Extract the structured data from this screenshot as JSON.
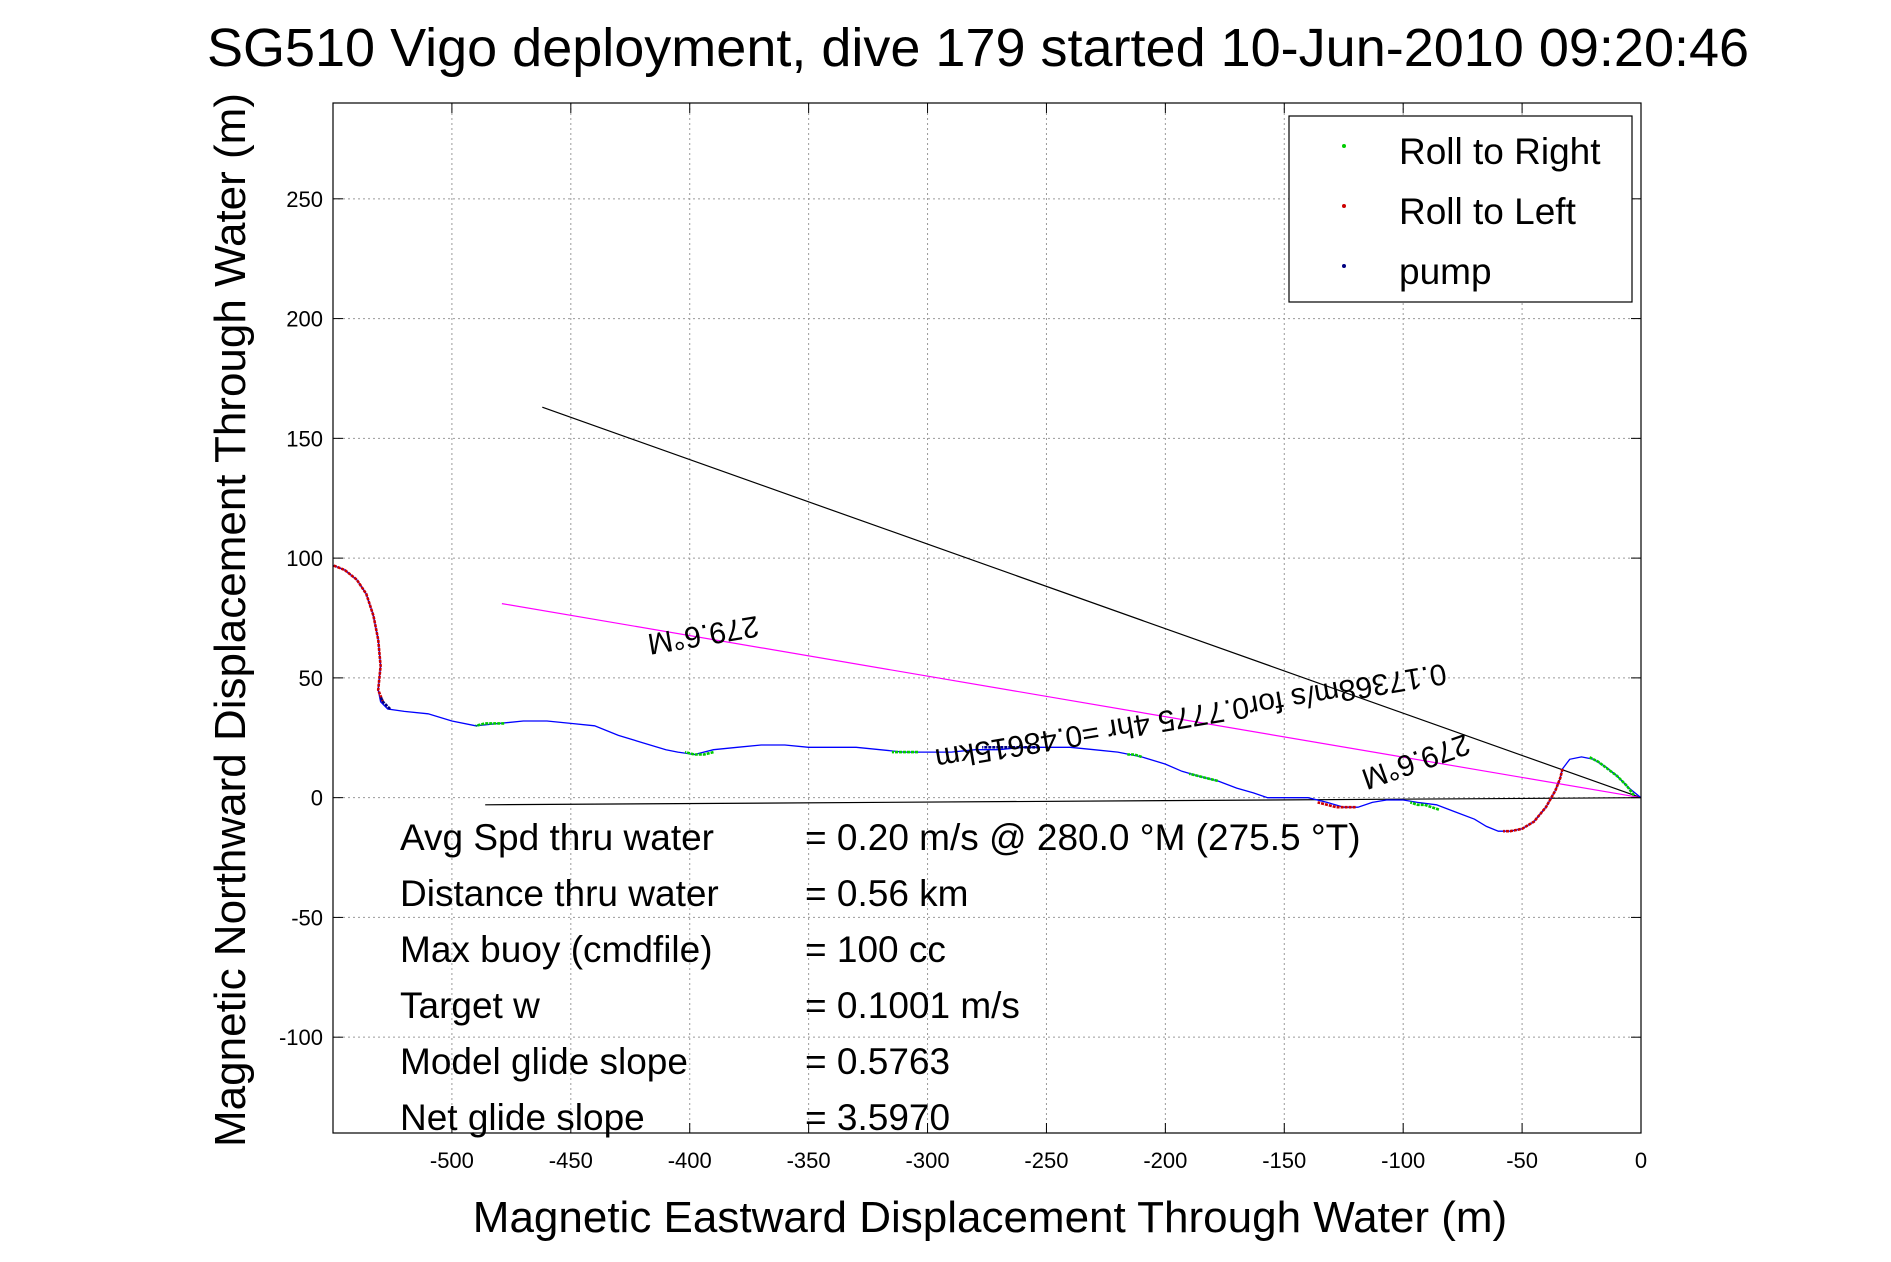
{
  "chart_data": {
    "type": "line",
    "title": "SG510 Vigo deployment, dive 179 started 10-Jun-2010 09:20:46",
    "xlabel": "Magnetic Eastward Displacement Through Water (m)",
    "ylabel": "Magnetic Northward Displacement Through Water (m)",
    "xlim": [
      -550,
      0
    ],
    "ylim": [
      -140,
      290
    ],
    "grid": true,
    "xticks": [
      -500,
      -450,
      -400,
      -350,
      -300,
      -250,
      -200,
      -150,
      -100,
      -50,
      0
    ],
    "yticks": [
      -100,
      -50,
      0,
      50,
      100,
      150,
      200,
      250
    ],
    "legend": {
      "placement": "top-right",
      "items": [
        {
          "label": "Roll to Right",
          "color": "#00cc00"
        },
        {
          "label": "Roll to Left",
          "color": "#cc0000"
        },
        {
          "label": "pump",
          "color": "#000080"
        }
      ]
    },
    "series": [
      {
        "role": "track",
        "color": "#0000ff",
        "x": [
          0,
          -5,
          -10,
          -15,
          -20,
          -25,
          -30,
          -33,
          -34,
          -36,
          -40,
          -45,
          -50,
          -55,
          -60,
          -65,
          -70,
          -78,
          -86,
          -94,
          -100,
          -107,
          -113,
          -119,
          -125,
          -132,
          -140,
          -150,
          -157,
          -163,
          -170,
          -178,
          -186,
          -193,
          -200,
          -210,
          -220,
          -230,
          -240,
          -250,
          -260,
          -270,
          -280,
          -290,
          -300,
          -310,
          -320,
          -330,
          -340,
          -350,
          -360,
          -370,
          -380,
          -390,
          -398,
          -405,
          -410,
          -420,
          -430,
          -440,
          -450,
          -460,
          -470,
          -480,
          -490,
          -500,
          -510,
          -520,
          -527,
          -530,
          -531,
          -530,
          -531,
          -533,
          -536,
          -540,
          -545,
          -550
        ],
        "y": [
          0,
          4,
          9,
          13,
          16,
          17,
          16,
          12,
          8,
          3,
          -4,
          -10,
          -13,
          -14,
          -14,
          -12,
          -9,
          -6,
          -3,
          -2,
          -1,
          -1,
          -2,
          -4,
          -4,
          -2,
          0,
          0,
          0,
          2,
          4,
          7,
          9,
          11,
          14,
          17,
          19,
          20,
          21,
          21,
          21,
          20,
          20,
          19,
          19,
          19,
          20,
          21,
          21,
          21,
          22,
          22,
          21,
          20,
          18,
          19,
          20,
          23,
          26,
          30,
          31,
          32,
          32,
          31,
          30,
          32,
          35,
          36,
          37,
          40,
          45,
          55,
          66,
          76,
          85,
          91,
          95,
          97
        ]
      }
    ],
    "segments": [
      {
        "label": "Roll to Right",
        "color": "#00cc00",
        "x": [
          -3,
          -6,
          -10,
          -14,
          -18,
          -22
        ],
        "y": [
          1,
          5,
          9,
          12,
          15,
          17
        ]
      },
      {
        "label": "Roll to Right",
        "color": "#00cc00",
        "x": [
          -85,
          -88,
          -91,
          -94,
          -97
        ],
        "y": [
          -5,
          -4,
          -3,
          -3,
          -2
        ]
      },
      {
        "label": "Roll to Right",
        "color": "#00cc00",
        "x": [
          -178,
          -182,
          -186,
          -190
        ],
        "y": [
          7,
          8,
          9,
          10
        ]
      },
      {
        "label": "Roll to Right",
        "color": "#00cc00",
        "x": [
          -210,
          -213,
          -216
        ],
        "y": [
          17,
          18,
          18
        ]
      },
      {
        "label": "Roll to Right",
        "color": "#00cc00",
        "x": [
          -304,
          -308,
          -312,
          -315
        ],
        "y": [
          19,
          19,
          19,
          19
        ]
      },
      {
        "label": "Roll to Right",
        "color": "#00cc00",
        "x": [
          -390,
          -394,
          -398,
          -402
        ],
        "y": [
          19,
          18,
          18,
          19
        ]
      },
      {
        "label": "Roll to Right",
        "color": "#00cc00",
        "x": [
          -478,
          -482,
          -486,
          -490
        ],
        "y": [
          31,
          31,
          31,
          30
        ]
      },
      {
        "label": "Roll to Left",
        "color": "#cc0000",
        "x": [
          -33,
          -34,
          -36,
          -40,
          -45,
          -50,
          -55,
          -58
        ],
        "y": [
          12,
          8,
          3,
          -4,
          -10,
          -13,
          -14,
          -14
        ]
      },
      {
        "label": "Roll to Left",
        "color": "#cc0000",
        "x": [
          -120,
          -124,
          -128,
          -132,
          -136
        ],
        "y": [
          -4,
          -4,
          -4,
          -3,
          -2
        ]
      },
      {
        "label": "Roll to Left",
        "color": "#cc0000",
        "x": [
          -529,
          -531,
          -530,
          -531,
          -533,
          -536,
          -540,
          -545,
          -550
        ],
        "y": [
          40,
          45,
          55,
          66,
          76,
          85,
          91,
          95,
          97
        ]
      },
      {
        "label": "pump",
        "color": "#000080",
        "x": [
          -253,
          -257,
          -261,
          -265,
          -269,
          -273,
          -277
        ],
        "y": [
          21,
          21,
          21,
          21,
          21,
          21,
          21
        ]
      },
      {
        "label": "pump",
        "color": "#000080",
        "x": [
          -526,
          -527,
          -528,
          -529,
          -530
        ],
        "y": [
          37,
          38,
          39,
          40,
          42
        ]
      }
    ],
    "lines": [
      {
        "color": "#000000",
        "x": [
          0,
          -462
        ],
        "y": [
          0,
          163
        ]
      },
      {
        "color": "#ff00ff",
        "x": [
          0,
          -479
        ],
        "y": [
          0,
          81
        ]
      },
      {
        "color": "#000000",
        "x": [
          0,
          -486
        ],
        "y": [
          0,
          -3
        ]
      }
    ],
    "annotations": [
      {
        "text": "279.6°M",
        "x": -395,
        "y": 72,
        "rotate": 170.4
      },
      {
        "text": "0.17368m/s for0.7775 4hr =0.48615km",
        "x": -190,
        "y": 38,
        "rotate": 170.4
      },
      {
        "text": "279.6°M",
        "x": -96,
        "y": 19,
        "rotate": 160.6
      }
    ],
    "stats": [
      {
        "label": "Avg Spd thru water",
        "value": "=  0.20 m/s @ 280.0 °M (275.5 °T)"
      },
      {
        "label": "Distance thru water",
        "value": "=  0.56 km"
      },
      {
        "label": "Max buoy (cmdfile)",
        "value": "= 100 cc"
      },
      {
        "label": "Target w",
        "value": "= 0.1001 m/s"
      },
      {
        "label": "Model glide slope",
        "value": "= 0.5763"
      },
      {
        "label": "Net glide slope",
        "value": "= 3.5970"
      }
    ]
  }
}
